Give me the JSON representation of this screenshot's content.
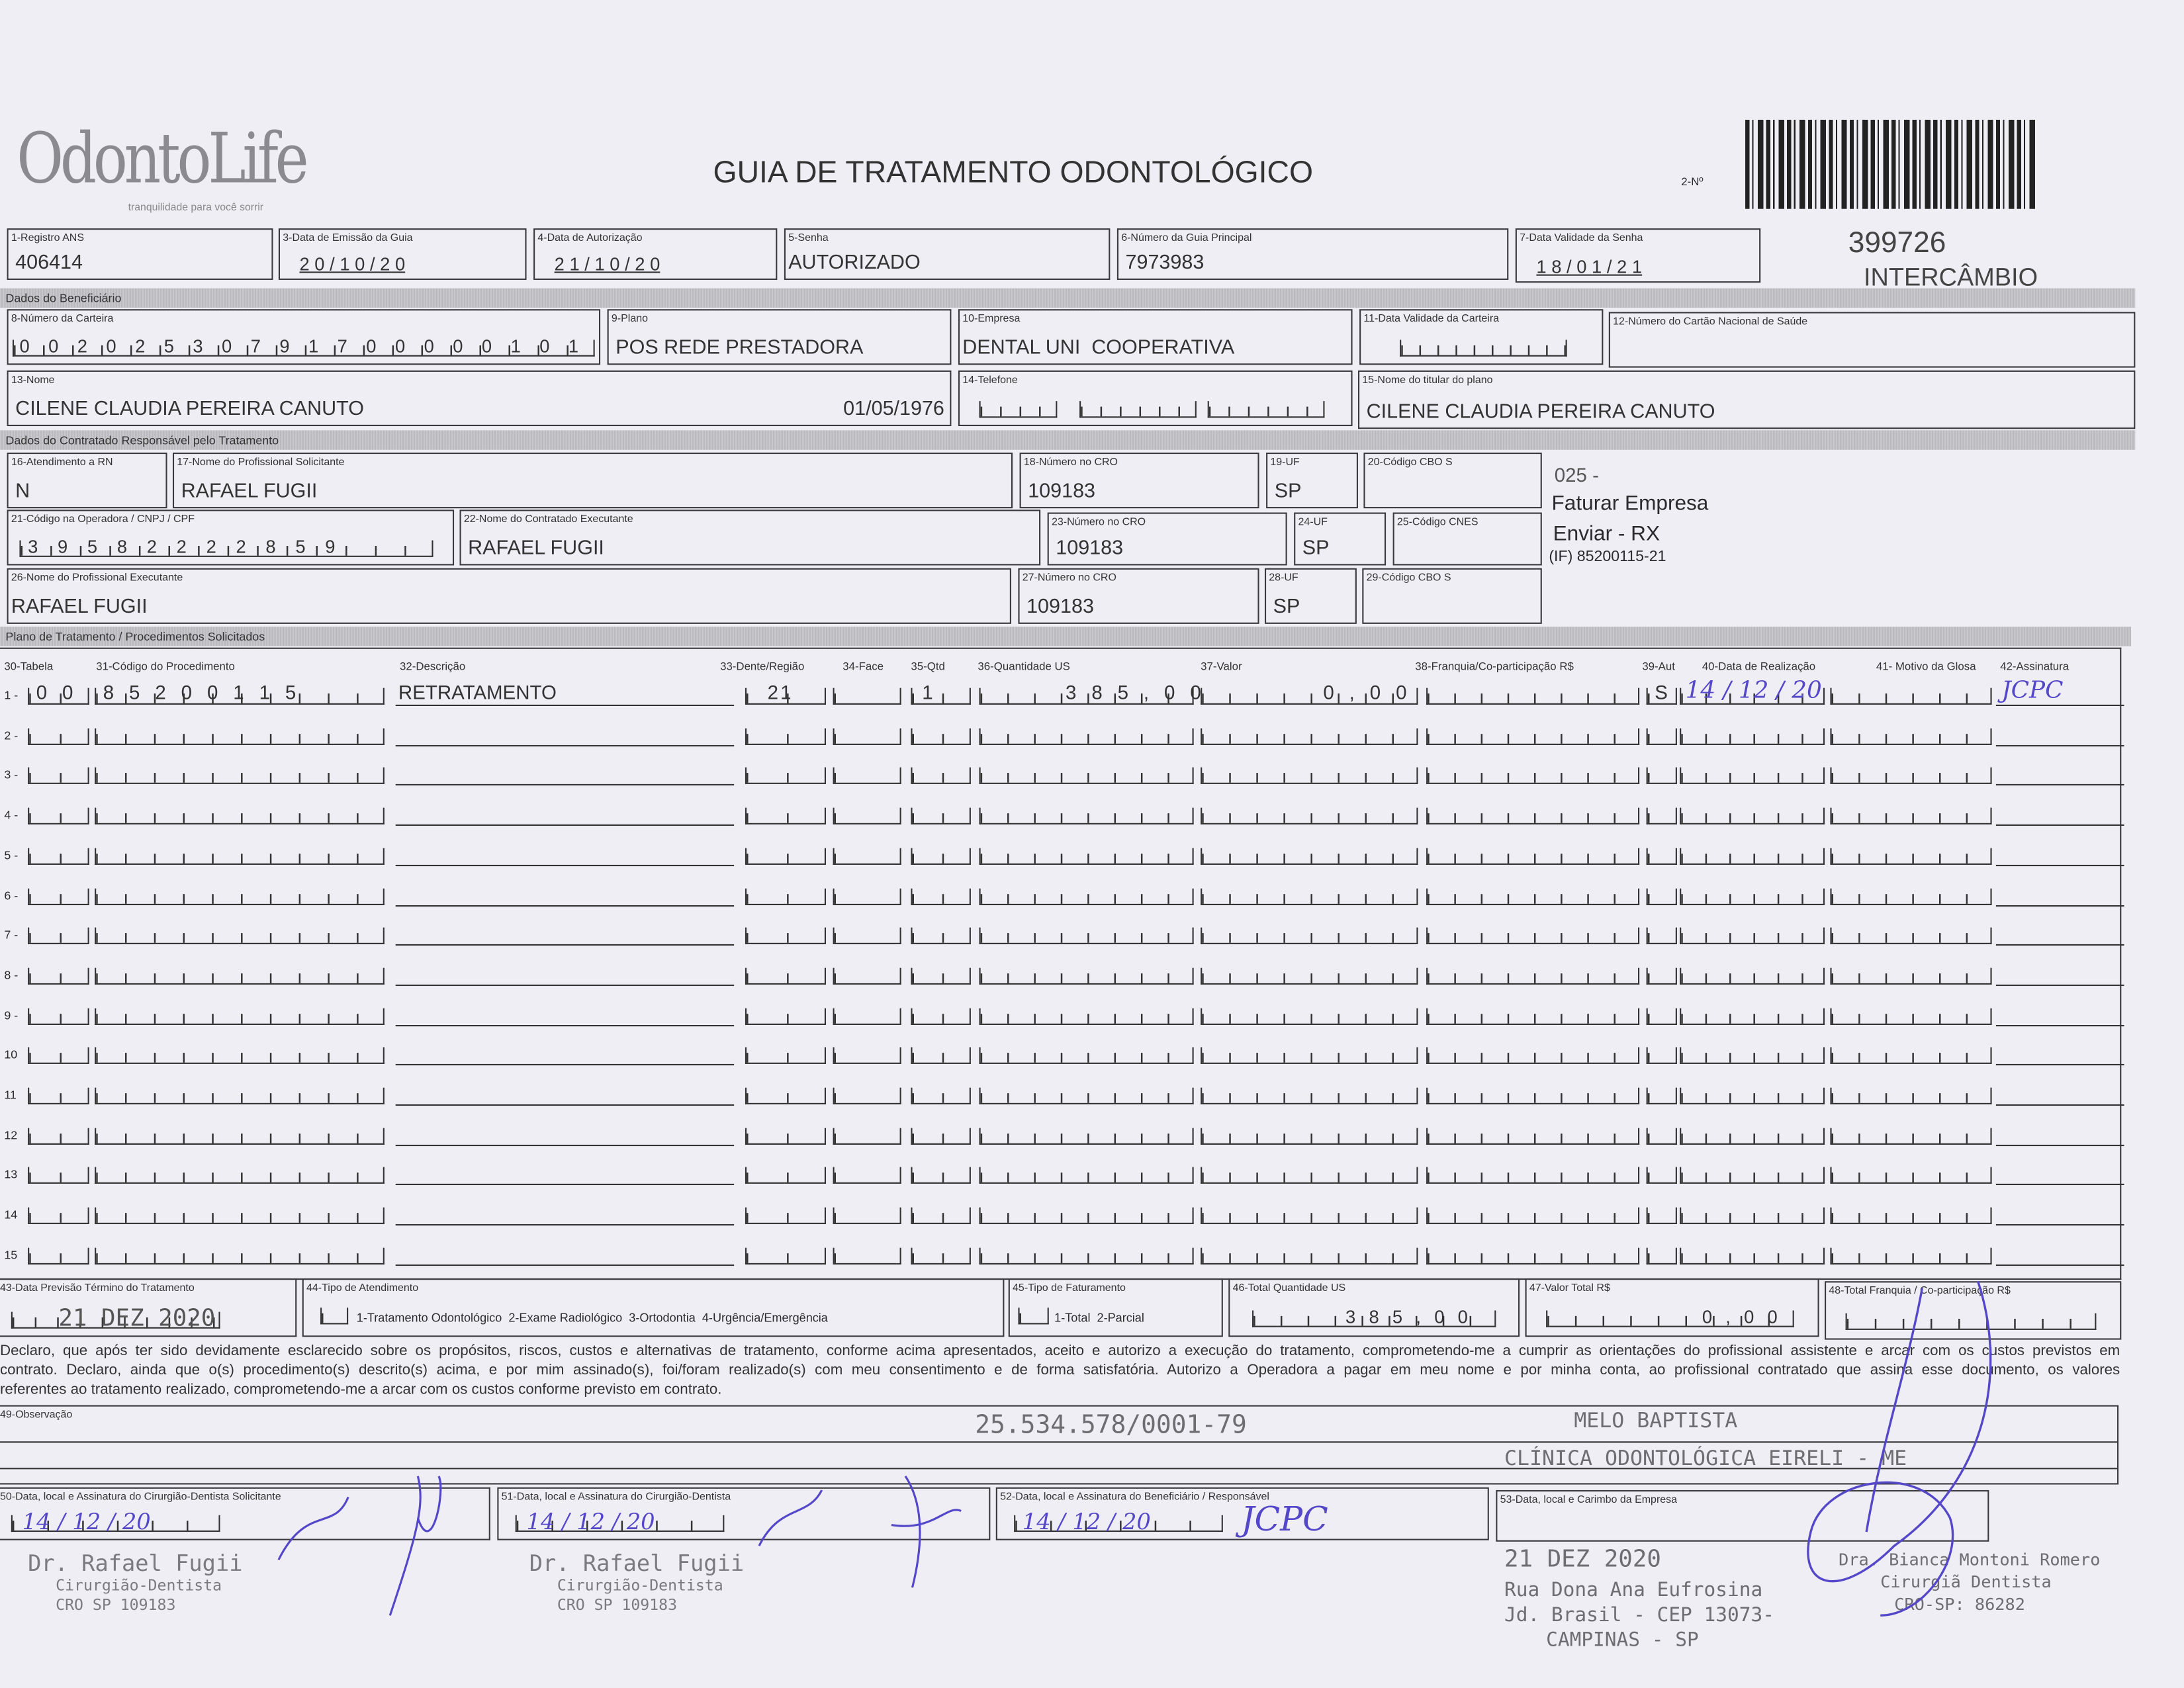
{
  "header": {
    "logo_text": "OdontoLife",
    "logo_tagline": "tranquilidade para você sorrir",
    "title": "GUIA DE TRATAMENTO ODONTOLÓGICO",
    "guide_no_label": "2-Nº",
    "guide_number": "399726",
    "guide_type": "INTERCÂMBIO"
  },
  "row1": {
    "registro_ans": {
      "label": "1-Registro ANS",
      "value": "406414"
    },
    "data_emissao": {
      "label": "3-Data de Emissão da Guia",
      "value": "2 0 / 1 0 / 2 0"
    },
    "data_autorizacao": {
      "label": "4-Data de Autorização",
      "value": "2 1 / 1 0 / 2 0"
    },
    "senha": {
      "label": "5-Senha",
      "value": "AUTORIZADO"
    },
    "guia_principal": {
      "label": "6-Número da Guia Principal",
      "value": "7973983"
    },
    "validade_senha": {
      "label": "7-Data Validade da Senha",
      "value": "1 8 / 0 1 / 2 1"
    }
  },
  "beneficiario": {
    "section_title": "Dados do Beneficiário",
    "carteira": {
      "label": "8-Número da Carteira",
      "value": "0 0 2 0 2 5 3 0 7 9 1 7 0 0 0 0 0 1 0 1"
    },
    "plano": {
      "label": "9-Plano",
      "value": "POS REDE PRESTADORA"
    },
    "empresa": {
      "label": "10-Empresa",
      "value": "DENTAL UNI  COOPERATIVA"
    },
    "validade_carteira": {
      "label": "11-Data Validade da Carteira",
      "value": ""
    },
    "cartao_nacional": {
      "label": "12-Número do Cartão Nacional de Saúde",
      "value": ""
    },
    "nome": {
      "label": "13-Nome",
      "value": "CILENE CLAUDIA PEREIRA CANUTO",
      "birth_date": "01/05/1976"
    },
    "telefone": {
      "label": "14-Telefone",
      "value": ""
    },
    "titular": {
      "label": "15-Nome do titular do plano",
      "value": "CILENE CLAUDIA PEREIRA CANUTO"
    }
  },
  "contratado": {
    "section_title": "Dados do Contratado Responsável pelo Tratamento",
    "atendimento_rn": {
      "label": "16-Atendimento a RN",
      "value": "N"
    },
    "prof_solicitante": {
      "label": "17-Nome do Profissional Solicitante",
      "value": "RAFAEL FUGII"
    },
    "cro_18": {
      "label": "18-Número no CRO",
      "value": "109183"
    },
    "uf_19": {
      "label": "19-UF",
      "value": "SP"
    },
    "cbo_20": {
      "label": "20-Código CBO S",
      "value": ""
    },
    "codigo_operadora": {
      "label": "21-Código na Operadora / CNPJ / CPF",
      "value": "3 9 5 8 2 2 2 2 8 5 9"
    },
    "contratado_executante": {
      "label": "22-Nome do Contratado Executante",
      "value": "RAFAEL FUGII"
    },
    "cro_23": {
      "label": "23-Número no CRO",
      "value": "109183"
    },
    "uf_24": {
      "label": "24-UF",
      "value": "SP"
    },
    "cnes": {
      "label": "25-Código CNES",
      "value": ""
    },
    "prof_executante": {
      "label": "26-Nome do Profissional Executante",
      "value": "RAFAEL FUGII"
    },
    "cro_27": {
      "label": "27-Número no CRO",
      "value": "109183"
    },
    "uf_28": {
      "label": "28-UF",
      "value": "SP"
    },
    "cbo_29": {
      "label": "29-Código CBO S",
      "value": ""
    },
    "notes": [
      "025 -",
      "Faturar Empresa",
      "Enviar - RX",
      "(IF) 85200115-21"
    ]
  },
  "procedures": {
    "section_title": "Plano de Tratamento / Procedimentos Solicitados",
    "headers": [
      "30-Tabela",
      "31-Código do Procedimento",
      "32-Descrição",
      "33-Dente/Região",
      "34-Face",
      "35-Qtd",
      "36-Quantidade US",
      "37-Valor",
      "38-Franquia/Co-participação R$",
      "39-Aut",
      "40-Data de Realização",
      "41- Motivo da Glosa",
      "42-Assinatura"
    ],
    "rows": [
      {
        "num": "1 -",
        "tabela": "0 0",
        "codigo": "8 5 2 0 0 1 1 5",
        "descricao": "RETRATAMENTO",
        "dente": "21",
        "face": "",
        "qtd": "1",
        "qtd_us": "3 8 5 , 0 0",
        "valor": "0 , 0 0",
        "franquia": "",
        "aut": "S",
        "data": "14 / 12 / 20",
        "glosa": "",
        "assinatura": "JCPC"
      },
      {
        "num": "2 -"
      },
      {
        "num": "3 -"
      },
      {
        "num": "4 -"
      },
      {
        "num": "5 -"
      },
      {
        "num": "6 -"
      },
      {
        "num": "7 -"
      },
      {
        "num": "8 -"
      },
      {
        "num": "9 -"
      },
      {
        "num": "10"
      },
      {
        "num": "11"
      },
      {
        "num": "12"
      },
      {
        "num": "13"
      },
      {
        "num": "14"
      },
      {
        "num": "15"
      }
    ]
  },
  "totals": {
    "previsao": {
      "label": "43-Data Previsão Término do Tratamento",
      "value": "21 DEZ 2020"
    },
    "tipo_atendimento": {
      "label": "44-Tipo de Atendimento",
      "options": "1-Tratamento Odontológico  2-Exame Radiológico  3-Ortodontia  4-Urgência/Emergência"
    },
    "tipo_faturamento": {
      "label": "45-Tipo de Faturamento",
      "options": "1-Total  2-Parcial"
    },
    "total_us": {
      "label": "46-Total Quantidade US",
      "value": "3 8 5 , 0 0"
    },
    "valor_total": {
      "label": "47-Valor Total R$",
      "value": "0 , 0 0"
    },
    "total_franquia": {
      "label": "48-Total Franquia / Co-participação R$",
      "value": ""
    }
  },
  "declaration": [
    "Declaro, que após ter sido devidamente esclarecido sobre os propósitos, riscos, custos e alternativas de tratamento, conforme acima apresentados, aceito e autorizo a execução do tratamento, comprometendo-me a cumprir as orientações do profissional assistente e arcar com os custos previstos em",
    "contrato. Declaro, ainda que o(s) procedimento(s) descrito(s) acima, e por mim assinado(s), foi/foram realizado(s) com meu consentimento e de forma satisfatória. Autorizo a Operadora a pagar em meu nome e por minha conta, ao profissional contratado que assina esse documento, os valores",
    "referentes ao tratamento realizado, comprometendo-me a arcar com os custos conforme previsto em contrato."
  ],
  "observacao": {
    "label": "49-Observação",
    "value": ""
  },
  "signatures": {
    "sig50": {
      "label": "50-Data, local e Assinatura do Cirurgião-Dentista Solicitante",
      "date": "14 / 12 / 20"
    },
    "sig51": {
      "label": "51-Data, local e Assinatura do Cirurgião-Dentista",
      "date": "14 / 12 / 20"
    },
    "sig52": {
      "label": "52-Data, local e Assinatura do Beneficiário / Responsável",
      "date": "14 / 12 / 20",
      "signature": "JCPC"
    },
    "sig53": {
      "label": "53-Data, local e Carimbo da Empresa"
    }
  },
  "stamps": {
    "dentist_1": [
      "Dr. Rafael Fugii",
      "Cirurgião-Dentista",
      "CRO SP 109183"
    ],
    "dentist_2": [
      "Dr. Rafael Fugii",
      "Cirurgião-Dentista",
      "CRO SP 109183"
    ],
    "cnpj": "25.534.578/0001-79",
    "clinic": [
      "MELO BAPTISTA",
      "CLÍNICA ODONTOLÓGICA EIRELI - ME",
      "Rua Dona Ana Eufrosina",
      "Jd. Brasil - CEP 13073-",
      "CAMPINAS - SP"
    ],
    "date": "21 DEZ 2020",
    "dentist_3": [
      "Dra. Bianca Montoni Romero",
      "Cirurgiã Dentista",
      "CRO-SP: 86282"
    ]
  },
  "colors": {
    "ink": "#2b2b2e",
    "pen": "#5447c8",
    "paper": "#efeef5",
    "stamp": "#6d6d72"
  }
}
